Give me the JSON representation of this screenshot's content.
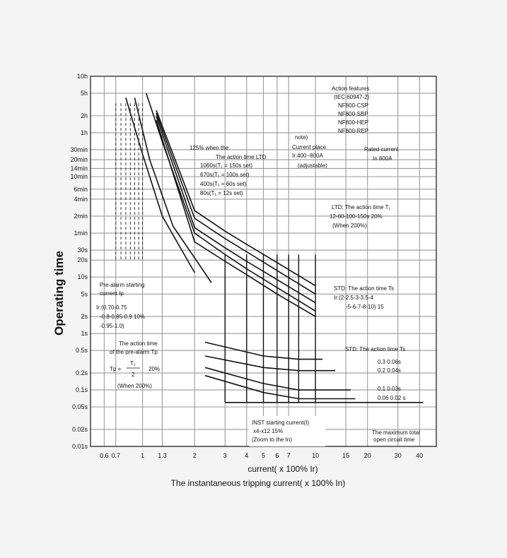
{
  "chart_data": {
    "type": "line",
    "title": "",
    "xlabel": "current( x 100% Ir)",
    "xlabel2": "The instantaneous tripping current( x 100% In)",
    "ylabel": "Operating time",
    "xscale": "log",
    "yscale": "log",
    "xlim": [
      0.5,
      50
    ],
    "ylim_seconds": [
      0.01,
      36000
    ],
    "x_ticks": [
      {
        "v": 0.6,
        "label": "0.6"
      },
      {
        "v": 0.7,
        "label": "0.7"
      },
      {
        "v": 1,
        "label": "1"
      },
      {
        "v": 1.3,
        "label": "1.3"
      },
      {
        "v": 2,
        "label": "2"
      },
      {
        "v": 3,
        "label": "3"
      },
      {
        "v": 4,
        "label": "4"
      },
      {
        "v": 5,
        "label": "5"
      },
      {
        "v": 6,
        "label": "6"
      },
      {
        "v": 7,
        "label": "7"
      },
      {
        "v": 10,
        "label": "10"
      },
      {
        "v": 15,
        "label": "15"
      },
      {
        "v": 20,
        "label": "20"
      },
      {
        "v": 30,
        "label": "30"
      },
      {
        "v": 40,
        "label": "40"
      }
    ],
    "y_ticks": [
      {
        "v": 36000,
        "label": "10h"
      },
      {
        "v": 18000,
        "label": "5h"
      },
      {
        "v": 7200,
        "label": "2h"
      },
      {
        "v": 3600,
        "label": "1h"
      },
      {
        "v": 1800,
        "label": "30min"
      },
      {
        "v": 1200,
        "label": "20min"
      },
      {
        "v": 840,
        "label": "14min"
      },
      {
        "v": 600,
        "label": "10min"
      },
      {
        "v": 360,
        "label": "6min"
      },
      {
        "v": 240,
        "label": "4min"
      },
      {
        "v": 120,
        "label": "2min"
      },
      {
        "v": 60,
        "label": "1min"
      },
      {
        "v": 30,
        "label": "30s"
      },
      {
        "v": 20,
        "label": "20s"
      },
      {
        "v": 10,
        "label": "10s"
      },
      {
        "v": 5,
        "label": "5s"
      },
      {
        "v": 2,
        "label": "2s"
      },
      {
        "v": 1,
        "label": "1s"
      },
      {
        "v": 0.5,
        "label": "0.5s"
      },
      {
        "v": 0.2,
        "label": "0.2s"
      },
      {
        "v": 0.1,
        "label": "0.1s"
      },
      {
        "v": 0.05,
        "label": "0.05s"
      },
      {
        "v": 0.02,
        "label": "0.02s"
      },
      {
        "v": 0.01,
        "label": "0.01s"
      }
    ],
    "grid": true,
    "series": [
      {
        "points": [
          [
            1.2,
            9000
          ],
          [
            2,
            150
          ],
          [
            3,
            65
          ],
          [
            4,
            38
          ],
          [
            6,
            18
          ],
          [
            10,
            7
          ]
        ]
      },
      {
        "points": [
          [
            1.2,
            8000
          ],
          [
            2,
            110
          ],
          [
            3,
            48
          ],
          [
            4,
            28
          ],
          [
            6,
            13
          ],
          [
            10,
            5
          ]
        ]
      },
      {
        "points": [
          [
            1.2,
            7000
          ],
          [
            2,
            75
          ],
          [
            3,
            33
          ],
          [
            4,
            19
          ],
          [
            6,
            9
          ],
          [
            10,
            3.5
          ]
        ]
      },
      {
        "points": [
          [
            1.2,
            6000
          ],
          [
            2,
            42
          ],
          [
            3,
            19
          ],
          [
            4,
            11
          ],
          [
            6,
            5
          ],
          [
            10,
            2
          ]
        ]
      },
      {
        "points": [
          [
            1.05,
            18000
          ],
          [
            1.3,
            2500
          ],
          [
            2,
            60
          ],
          [
            3,
            25
          ],
          [
            4,
            14
          ],
          [
            6,
            6.5
          ],
          [
            10,
            2.5
          ]
        ]
      },
      {
        "points": [
          [
            0.8,
            15000
          ],
          [
            1,
            1500
          ],
          [
            1.3,
            120
          ],
          [
            2,
            12
          ]
        ]
      },
      {
        "points": [
          [
            0.9,
            15000
          ],
          [
            1.1,
            1200
          ],
          [
            1.5,
            80
          ],
          [
            2.5,
            8
          ]
        ]
      },
      {
        "points": [
          [
            2.3,
            0.7
          ],
          [
            5,
            0.4
          ],
          [
            8,
            0.35
          ],
          [
            11,
            0.35
          ]
        ]
      },
      {
        "points": [
          [
            2.3,
            0.4
          ],
          [
            5,
            0.25
          ],
          [
            8,
            0.22
          ],
          [
            13,
            0.22
          ]
        ]
      },
      {
        "points": [
          [
            2.3,
            0.25
          ],
          [
            5,
            0.13
          ],
          [
            8,
            0.1
          ],
          [
            16,
            0.1
          ]
        ]
      },
      {
        "points": [
          [
            2.3,
            0.18
          ],
          [
            5,
            0.09
          ],
          [
            8,
            0.07
          ],
          [
            17,
            0.07
          ]
        ]
      },
      {
        "points": [
          [
            3,
            0.06
          ],
          [
            12,
            0.06
          ],
          [
            42,
            0.06
          ]
        ]
      }
    ],
    "annotations": {
      "features": [
        "Action features",
        "(IEC 60947-2)",
        "NF800-CSP",
        "NF800-SBP",
        "NF800-HEP",
        "NF800-REP"
      ],
      "note": [
        "note)",
        "Current place",
        "Ir:400~800A",
        "(adjustable)"
      ],
      "rated": [
        "Rated current",
        "In 800A"
      ],
      "ltd_125": [
        "125% when the",
        "The action time LTD"
      ],
      "ltd_sets": [
        "1060s(T₁ = 150s set)",
        "670s(T₁ = 100s set)",
        "400s(T₁ = 60s set)",
        "80s(T₁ = 12s set)"
      ],
      "ltd_action": [
        "LTD: The action time T₁",
        "12-60-100-150s  20%",
        "(When 200%)"
      ],
      "std_1": [
        "STD: The action time Ts",
        "Ir:(2-2.5-3-3.5-4",
        "-5-6-7-8-10) 15"
      ],
      "std_2": [
        "STD: The action time Ts"
      ],
      "std_values": [
        "0.3  0.06s",
        "0.2  0.04s",
        "0.1  0.03s",
        "0.06  0.02 s"
      ],
      "prealarm_start": [
        "Pre-alarm starting",
        "current Ip",
        "Ir:(0.70-0.75",
        "-0.8-0.85-0.9   10%",
        "-0.95-1.0)"
      ],
      "prealarm_time": [
        "The action time",
        "of the pre-alarm Tp",
        "Tp =",
        "T₁",
        "2",
        "20%",
        "(When 200%)"
      ],
      "inst": [
        "INST starting current(I)",
        "x4-x12     15%",
        "(Zoom to the In)"
      ],
      "max_total": [
        "The maximum total",
        "open circuit time"
      ]
    }
  }
}
